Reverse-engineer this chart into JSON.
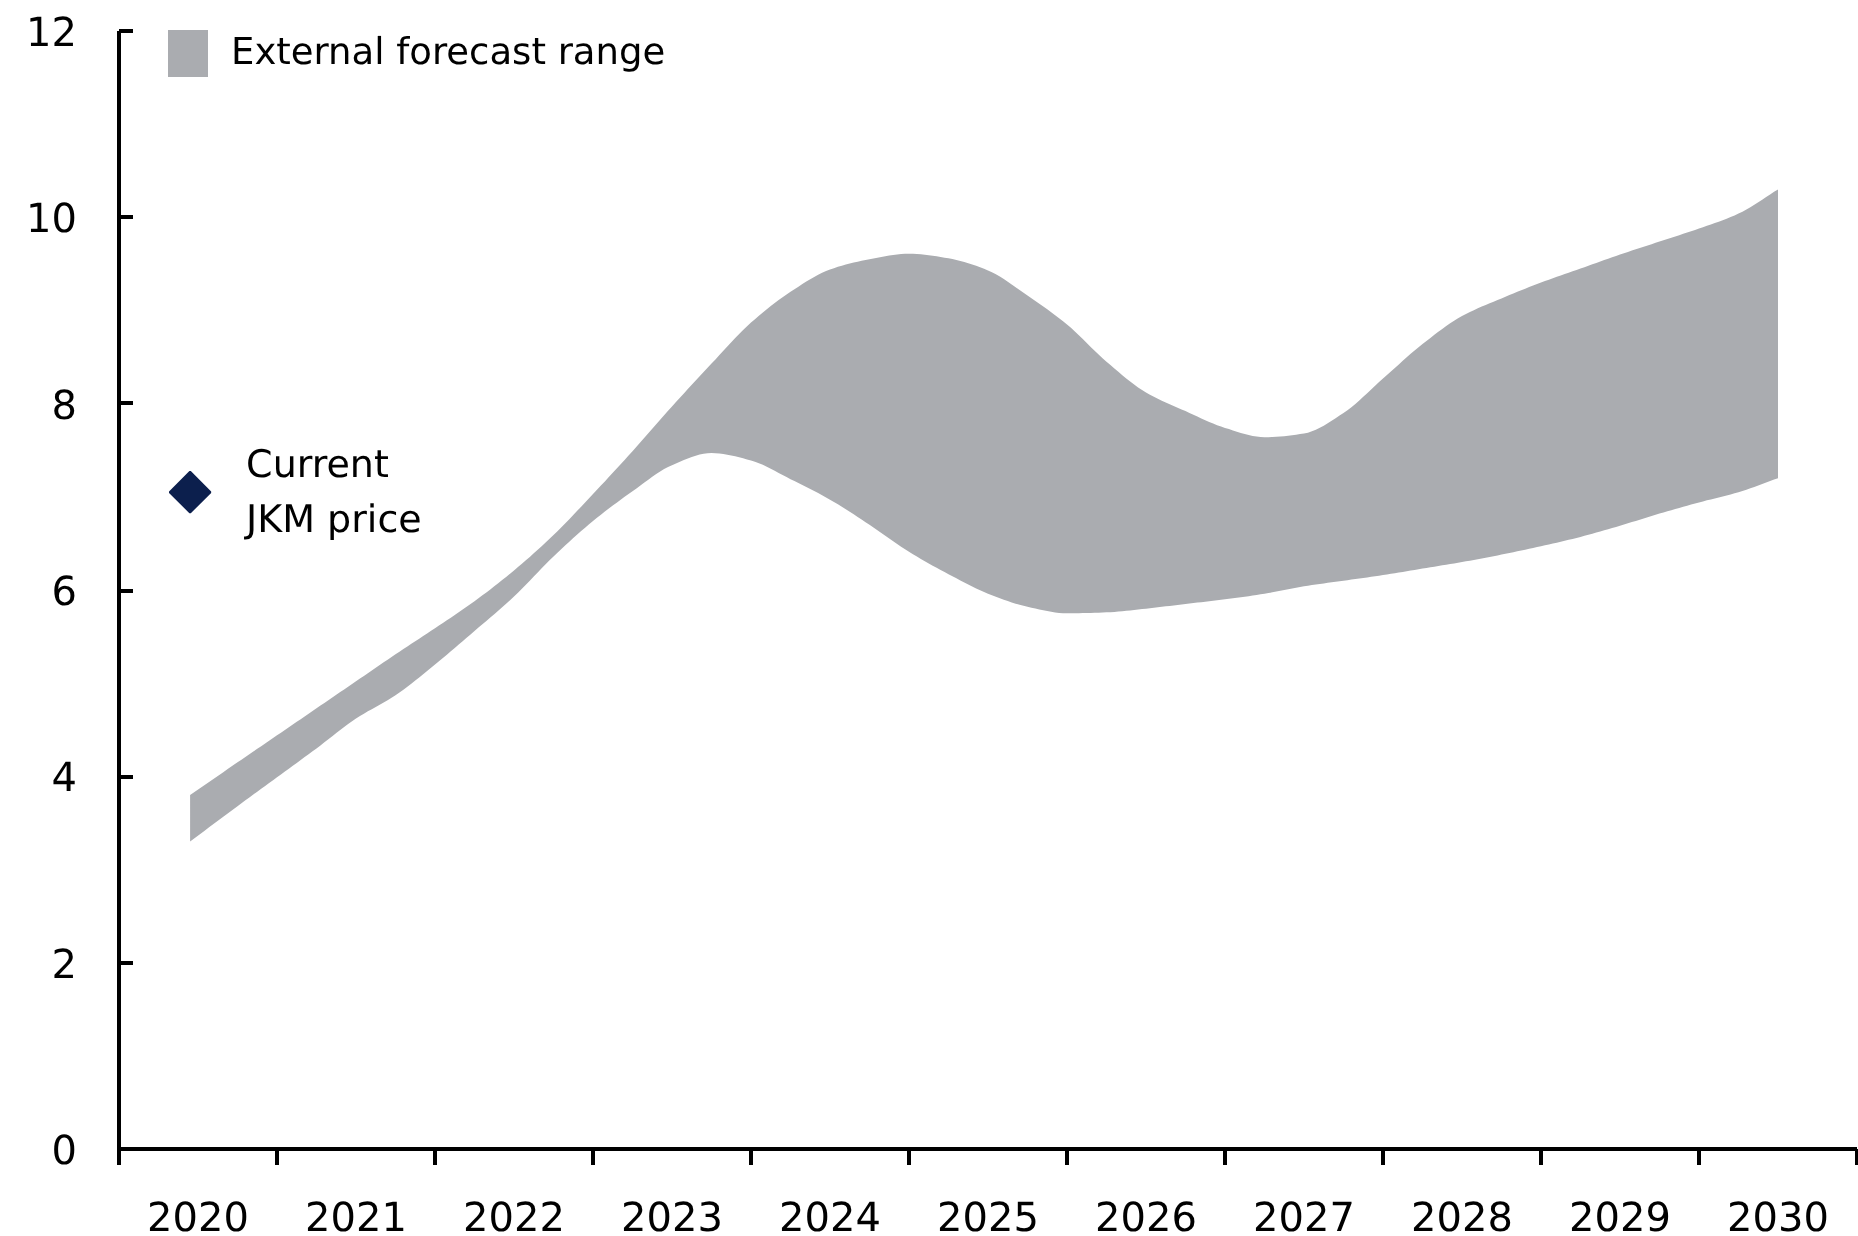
{
  "chart_data": {
    "type": "area",
    "legend": "top left",
    "xlim": [
      2019.5,
      2030.5
    ],
    "ylim": [
      0,
      12
    ],
    "xticks": [
      {
        "value": 2019.5,
        "label": null
      },
      2020,
      {
        "value": 2020.5,
        "label": null
      },
      2021,
      {
        "value": 2021.5,
        "label": null
      },
      2022,
      {
        "value": 2022.5,
        "label": null
      },
      2023,
      {
        "value": 2023.5,
        "label": null
      },
      2024,
      {
        "value": 2024.5,
        "label": null
      },
      2025,
      {
        "value": 2025.5,
        "label": null
      },
      2026,
      {
        "value": 2026.5,
        "label": null
      },
      2027,
      {
        "value": 2027.5,
        "label": null
      },
      2028,
      {
        "value": 2028.5,
        "label": null
      },
      2029,
      {
        "value": 2029.5,
        "label": null
      },
      2030,
      {
        "value": 2030.5,
        "label": null
      }
    ],
    "yticks": [
      0,
      2,
      4,
      6,
      8,
      10,
      12
    ],
    "series": [
      {
        "name": "External forecast range",
        "color": "#aaacb0",
        "x": [
          2019.95,
          2020.25,
          2020.5,
          2020.75,
          2021,
          2021.25,
          2021.5,
          2021.75,
          2022,
          2022.25,
          2022.5,
          2022.75,
          2023,
          2023.25,
          2023.5,
          2023.75,
          2024,
          2024.25,
          2024.5,
          2024.75,
          2025,
          2025.25,
          2025.5,
          2025.75,
          2026,
          2026.25,
          2026.5,
          2026.75,
          2027,
          2027.25,
          2027.5,
          2027.75,
          2028,
          2028.25,
          2028.5,
          2028.75,
          2029,
          2029.25,
          2029.5,
          2029.75,
          2030
        ],
        "values": [
          null,
          null,
          null,
          null,
          null,
          null,
          null,
          null,
          null,
          null,
          null,
          null,
          null,
          null,
          null,
          null,
          null,
          null,
          null,
          null,
          null,
          null,
          null,
          null,
          null,
          null,
          null,
          null,
          null,
          null,
          null,
          null,
          null,
          null,
          null,
          null,
          null,
          null,
          null,
          null,
          null
        ],
        "lower": [
          3.3,
          3.68,
          3.99,
          4.3,
          4.62,
          4.87,
          5.2,
          5.56,
          5.93,
          6.36,
          6.74,
          7.06,
          7.34,
          7.47,
          7.39,
          7.19,
          6.97,
          6.7,
          6.41,
          6.17,
          5.96,
          5.82,
          5.75,
          5.76,
          5.8,
          5.85,
          5.9,
          5.96,
          6.04,
          6.1,
          6.16,
          6.23,
          6.3,
          6.38,
          6.47,
          6.57,
          6.69,
          6.82,
          6.94,
          7.05,
          7.2
        ],
        "upper": [
          3.8,
          4.15,
          4.44,
          4.73,
          5.02,
          5.31,
          5.59,
          5.88,
          6.21,
          6.59,
          7.03,
          7.49,
          7.97,
          8.43,
          8.87,
          9.2,
          9.44,
          9.55,
          9.61,
          9.56,
          9.43,
          9.16,
          8.85,
          8.45,
          8.12,
          7.92,
          7.74,
          7.64,
          7.68,
          7.9,
          8.27,
          8.64,
          8.94,
          9.13,
          9.3,
          9.45,
          9.6,
          9.74,
          9.88,
          10.04,
          10.3
        ]
      },
      {
        "name": "Current JKM price",
        "type": "scatter",
        "color": "#0c1f4d",
        "marker": "diamond",
        "x": [
          2019.95
        ],
        "values": [
          7.05
        ]
      }
    ]
  }
}
